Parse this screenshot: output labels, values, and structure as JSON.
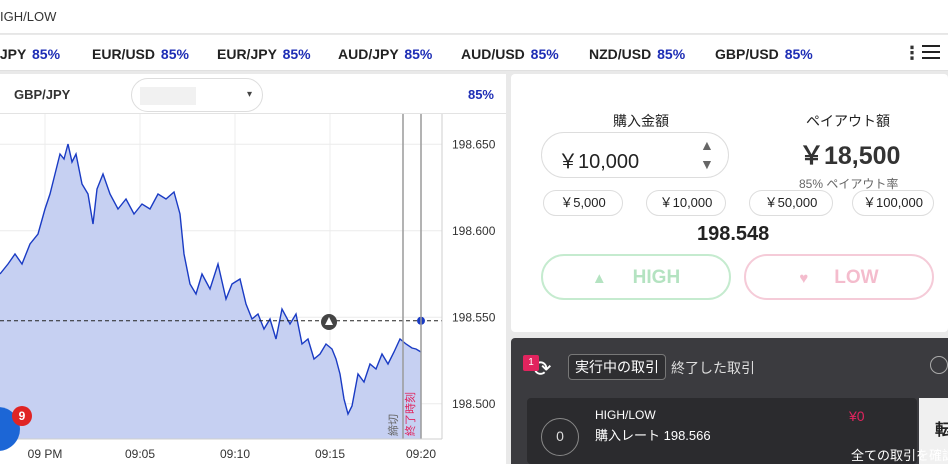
{
  "header": {
    "title": "IGH/LOW"
  },
  "pairs": [
    {
      "name": "/JPY",
      "pct": "85%"
    },
    {
      "name": "EUR/USD",
      "pct": "85%"
    },
    {
      "name": "EUR/JPY",
      "pct": "85%"
    },
    {
      "name": "AUD/JPY",
      "pct": "85%"
    },
    {
      "name": "AUD/USD",
      "pct": "85%"
    },
    {
      "name": "NZD/USD",
      "pct": "85%"
    },
    {
      "name": "GBP/USD",
      "pct": "85%"
    }
  ],
  "chart_panel": {
    "pair": "GBP/JPY",
    "pct": "85%",
    "caret": "▾",
    "cutoff_label": "締切",
    "end_label": "終了時刻"
  },
  "chart_data": {
    "type": "area",
    "y_ticks": [
      "198.650",
      "198.600",
      "198.550",
      "198.500"
    ],
    "x_ticks": [
      "09 PM",
      "09:05",
      "09:10",
      "09:15",
      "09:20"
    ],
    "ylim": [
      198.495,
      198.68
    ],
    "current_rate": 198.548,
    "colors": {
      "line": "#1a3bc4",
      "fill": "#c6d0f2",
      "marker": "#1a3bc4"
    }
  },
  "trade": {
    "amount_label": "購入金額",
    "amount_value": "￥10,000",
    "up_arrow": "▲",
    "down_arrow": "▼",
    "payout_label": "ペイアウト額",
    "payout_value": "￥18,500",
    "payout_rate": "85% ペイアウト率",
    "chips": [
      "￥5,000",
      "￥10,000",
      "￥50,000",
      "￥100,000"
    ],
    "rate": "198.548",
    "high_label": "HIGH",
    "low_label": "LOW",
    "high_icon": "▲",
    "low_icon": "♥"
  },
  "positions": {
    "badge": "1",
    "tab_active": "実行中の取引",
    "tab_inactive": "終了した取引",
    "card": {
      "count": "0",
      "title": "HIGH/LOW",
      "rate": "購入レート 198.566",
      "payout": "¥0"
    },
    "side_button": "転",
    "confirm_all": "全ての取引を確認"
  },
  "notification": {
    "count": "9"
  }
}
